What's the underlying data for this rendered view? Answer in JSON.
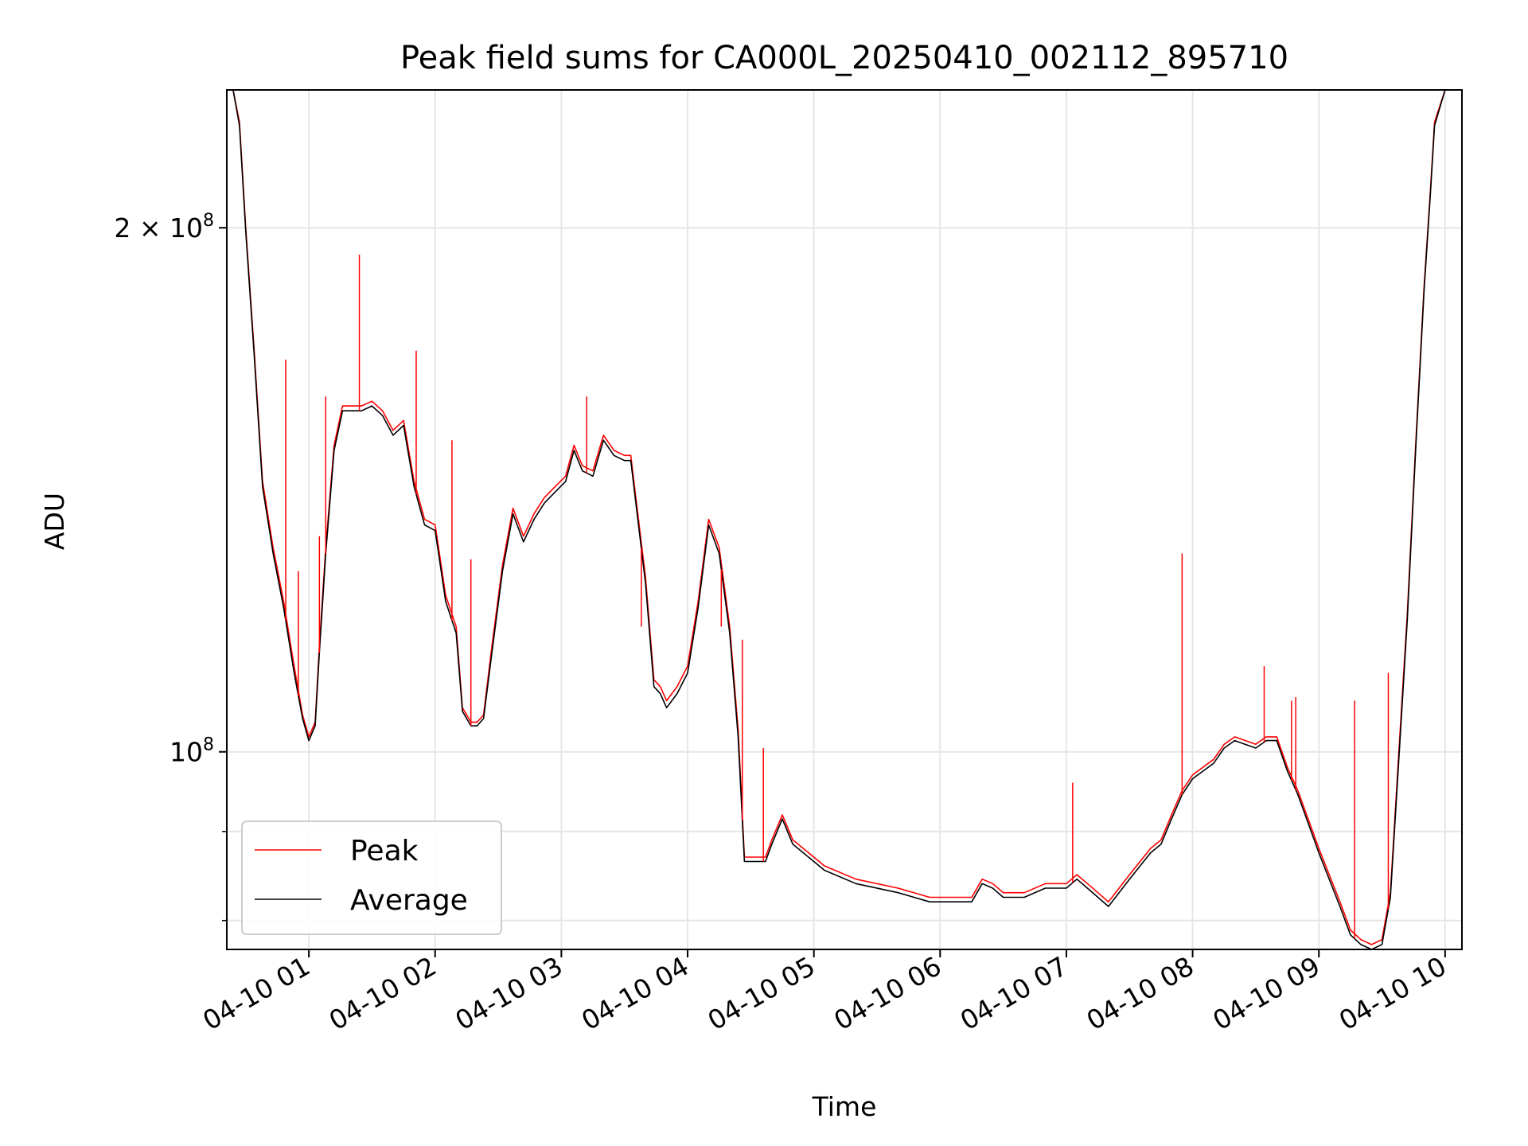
{
  "chart_data": {
    "type": "line",
    "title": "Peak field sums for CA000L_20250410_002112_895710",
    "xlabel": "Time",
    "ylabel": "ADU",
    "yscale": "log",
    "ylim": [
      77000000,
      240000000
    ],
    "xlim": [
      "04-10 00:21",
      "04-10 10:08"
    ],
    "x_ticks": [
      "04-10 01",
      "04-10 02",
      "04-10 03",
      "04-10 04",
      "04-10 05",
      "04-10 06",
      "04-10 07",
      "04-10 08",
      "04-10 09",
      "04-10 10"
    ],
    "y_tick_labels": [
      {
        "value": 200000000,
        "mantissa": "2",
        "times": "×",
        "base": "10",
        "exp": "8"
      },
      {
        "value": 100000000,
        "mantissa": "",
        "times": "",
        "base": "10",
        "exp": "8"
      }
    ],
    "y_minor_ticks": [
      80000000,
      90000000
    ],
    "grid": true,
    "legend_position": "lower-left",
    "series": [
      {
        "name": "Peak",
        "color": "#ff0000",
        "x": [
          "04-10 00:21",
          "04-10 00:24",
          "04-10 00:27",
          "04-10 00:30",
          "04-10 00:34",
          "04-10 00:38",
          "04-10 00:43",
          "04-10 00:48",
          "04-10 00:53",
          "04-10 00:57",
          "04-10 01:00",
          "04-10 01:03",
          "04-10 01:05",
          "04-10 01:08",
          "04-10 01:12",
          "04-10 01:16",
          "04-10 01:20",
          "04-10 01:25",
          "04-10 01:30",
          "04-10 01:35",
          "04-10 01:40",
          "04-10 01:45",
          "04-10 01:50",
          "04-10 01:55",
          "04-10 02:00",
          "04-10 02:05",
          "04-10 02:10",
          "04-10 02:13",
          "04-10 02:17",
          "04-10 02:20",
          "04-10 02:23",
          "04-10 02:27",
          "04-10 02:32",
          "04-10 02:37",
          "04-10 02:42",
          "04-10 02:47",
          "04-10 02:52",
          "04-10 02:57",
          "04-10 03:02",
          "04-10 03:06",
          "04-10 03:10",
          "04-10 03:15",
          "04-10 03:20",
          "04-10 03:25",
          "04-10 03:30",
          "04-10 03:33",
          "04-10 03:36",
          "04-10 03:40",
          "04-10 03:44",
          "04-10 03:47",
          "04-10 03:50",
          "04-10 03:55",
          "04-10 04:00",
          "04-10 04:05",
          "04-10 04:10",
          "04-10 04:15",
          "04-10 04:20",
          "04-10 04:24",
          "04-10 04:27",
          "04-10 04:33",
          "04-10 04:37",
          "04-10 04:40",
          "04-10 04:45",
          "04-10 04:50",
          "04-10 04:55",
          "04-10 05:05",
          "04-10 05:20",
          "04-10 05:40",
          "04-10 05:55",
          "04-10 06:15",
          "04-10 06:20",
          "04-10 06:25",
          "04-10 06:30",
          "04-10 06:40",
          "04-10 06:50",
          "04-10 07:00",
          "04-10 07:05",
          "04-10 07:10",
          "04-10 07:15",
          "04-10 07:20",
          "04-10 07:30",
          "04-10 07:40",
          "04-10 07:45",
          "04-10 07:50",
          "04-10 07:55",
          "04-10 08:00",
          "04-10 08:10",
          "04-10 08:15",
          "04-10 08:20",
          "04-10 08:30",
          "04-10 08:35",
          "04-10 08:40",
          "04-10 08:45",
          "04-10 08:50",
          "04-10 09:00",
          "04-10 09:10",
          "04-10 09:15",
          "04-10 09:20",
          "04-10 09:25",
          "04-10 09:30",
          "04-10 09:34",
          "04-10 09:38",
          "04-10 09:42",
          "04-10 09:46",
          "04-10 09:50",
          "04-10 09:53",
          "04-10 09:55",
          "04-10 10:00"
        ],
        "y": [
          240000000,
          240000000,
          230000000,
          200000000,
          170000000,
          143000000,
          131000000,
          122000000,
          112000000,
          105000000,
          102000000,
          104000000,
          115000000,
          131000000,
          150000000,
          158000000,
          158000000,
          158000000,
          159000000,
          157000000,
          153000000,
          155000000,
          143000000,
          136000000,
          135000000,
          123000000,
          118000000,
          106000000,
          104000000,
          104000000,
          105000000,
          115000000,
          128000000,
          138000000,
          133000000,
          137000000,
          140000000,
          142000000,
          144000000,
          150000000,
          146000000,
          145000000,
          152000000,
          149000000,
          148000000,
          148000000,
          138000000,
          126000000,
          110000000,
          109000000,
          107000000,
          109000000,
          112000000,
          122000000,
          136000000,
          131000000,
          118000000,
          103000000,
          87000000,
          87000000,
          87000000,
          89000000,
          92000000,
          89000000,
          88000000,
          86000000,
          84500000,
          83500000,
          82500000,
          82500000,
          84500000,
          84000000,
          83000000,
          83000000,
          84000000,
          84000000,
          85000000,
          84000000,
          83000000,
          82000000,
          85000000,
          88000000,
          89000000,
          92000000,
          95000000,
          97000000,
          99000000,
          101000000,
          102000000,
          101000000,
          102000000,
          102000000,
          98000000,
          95000000,
          88000000,
          82000000,
          79000000,
          78000000,
          77500000,
          78000000,
          83000000,
          100000000,
          120000000,
          150000000,
          185000000,
          210000000,
          230000000,
          240000000
        ]
      },
      {
        "name": "Average",
        "color": "#000000",
        "x": [
          "04-10 00:21",
          "04-10 00:24",
          "04-10 00:27",
          "04-10 00:30",
          "04-10 00:34",
          "04-10 00:38",
          "04-10 00:43",
          "04-10 00:48",
          "04-10 00:53",
          "04-10 00:57",
          "04-10 01:00",
          "04-10 01:03",
          "04-10 01:05",
          "04-10 01:08",
          "04-10 01:12",
          "04-10 01:16",
          "04-10 01:20",
          "04-10 01:25",
          "04-10 01:30",
          "04-10 01:35",
          "04-10 01:40",
          "04-10 01:45",
          "04-10 01:50",
          "04-10 01:55",
          "04-10 02:00",
          "04-10 02:05",
          "04-10 02:10",
          "04-10 02:13",
          "04-10 02:17",
          "04-10 02:20",
          "04-10 02:23",
          "04-10 02:27",
          "04-10 02:32",
          "04-10 02:37",
          "04-10 02:42",
          "04-10 02:47",
          "04-10 02:52",
          "04-10 02:57",
          "04-10 03:02",
          "04-10 03:06",
          "04-10 03:10",
          "04-10 03:15",
          "04-10 03:20",
          "04-10 03:25",
          "04-10 03:30",
          "04-10 03:33",
          "04-10 03:36",
          "04-10 03:40",
          "04-10 03:44",
          "04-10 03:47",
          "04-10 03:50",
          "04-10 03:55",
          "04-10 04:00",
          "04-10 04:05",
          "04-10 04:10",
          "04-10 04:15",
          "04-10 04:20",
          "04-10 04:24",
          "04-10 04:27",
          "04-10 04:33",
          "04-10 04:37",
          "04-10 04:40",
          "04-10 04:45",
          "04-10 04:50",
          "04-10 04:55",
          "04-10 05:05",
          "04-10 05:20",
          "04-10 05:40",
          "04-10 05:55",
          "04-10 06:15",
          "04-10 06:20",
          "04-10 06:25",
          "04-10 06:30",
          "04-10 06:40",
          "04-10 06:50",
          "04-10 07:00",
          "04-10 07:05",
          "04-10 07:10",
          "04-10 07:15",
          "04-10 07:20",
          "04-10 07:30",
          "04-10 07:40",
          "04-10 07:45",
          "04-10 07:50",
          "04-10 07:55",
          "04-10 08:00",
          "04-10 08:10",
          "04-10 08:15",
          "04-10 08:20",
          "04-10 08:30",
          "04-10 08:35",
          "04-10 08:40",
          "04-10 08:45",
          "04-10 08:50",
          "04-10 09:00",
          "04-10 09:10",
          "04-10 09:15",
          "04-10 09:20",
          "04-10 09:25",
          "04-10 09:30",
          "04-10 09:34",
          "04-10 09:38",
          "04-10 09:42",
          "04-10 09:46",
          "04-10 09:50",
          "04-10 09:53",
          "04-10 09:55",
          "04-10 10:00"
        ],
        "y": [
          240000000,
          240000000,
          229000000,
          199000000,
          169000000,
          142000000,
          130000000,
          121000000,
          111000000,
          104500000,
          101500000,
          103500000,
          114000000,
          130000000,
          149000000,
          157000000,
          157000000,
          157000000,
          158000000,
          156000000,
          152000000,
          154000000,
          142000000,
          135000000,
          134000000,
          122000000,
          117000000,
          105500000,
          103500000,
          103500000,
          104500000,
          114000000,
          127000000,
          137000000,
          132000000,
          136000000,
          139000000,
          141000000,
          143000000,
          149000000,
          145000000,
          144000000,
          151000000,
          148000000,
          147000000,
          147000000,
          137000000,
          125000000,
          109000000,
          108000000,
          106000000,
          108000000,
          111000000,
          121000000,
          135000000,
          130000000,
          117000000,
          102000000,
          86500000,
          86500000,
          86500000,
          88500000,
          91500000,
          88500000,
          87500000,
          85500000,
          84000000,
          83000000,
          82000000,
          82000000,
          84000000,
          83500000,
          82500000,
          82500000,
          83500000,
          83500000,
          84500000,
          83500000,
          82500000,
          81500000,
          84500000,
          87500000,
          88500000,
          91500000,
          94500000,
          96500000,
          98500000,
          100500000,
          101500000,
          100500000,
          101500000,
          101500000,
          97500000,
          94500000,
          87500000,
          81500000,
          78500000,
          77500000,
          77000000,
          77500000,
          82500000,
          99000000,
          119000000,
          149000000,
          184000000,
          209000000,
          229000000,
          240000000
        ]
      }
    ],
    "spikes": [
      {
        "x": "04-10 00:49",
        "y": 168000000
      },
      {
        "x": "04-10 00:55",
        "y": 127000000
      },
      {
        "x": "04-10 01:05",
        "y": 133000000
      },
      {
        "x": "04-10 01:08",
        "y": 160000000
      },
      {
        "x": "04-10 01:24",
        "y": 193000000
      },
      {
        "x": "04-10 01:51",
        "y": 170000000
      },
      {
        "x": "04-10 02:08",
        "y": 151000000
      },
      {
        "x": "04-10 02:17",
        "y": 129000000
      },
      {
        "x": "04-10 03:12",
        "y": 160000000
      },
      {
        "x": "04-10 03:38",
        "y": 118000000
      },
      {
        "x": "04-10 04:16",
        "y": 118000000
      },
      {
        "x": "04-10 04:26",
        "y": 116000000
      },
      {
        "x": "04-10 04:36",
        "y": 100500000
      },
      {
        "x": "04-10 07:03",
        "y": 96000000
      },
      {
        "x": "04-10 07:55",
        "y": 130000000
      },
      {
        "x": "04-10 08:34",
        "y": 112000000
      },
      {
        "x": "04-10 08:47",
        "y": 107000000
      },
      {
        "x": "04-10 08:49",
        "y": 107500000
      },
      {
        "x": "04-10 09:17",
        "y": 107000000
      },
      {
        "x": "04-10 09:33",
        "y": 111000000
      }
    ]
  }
}
